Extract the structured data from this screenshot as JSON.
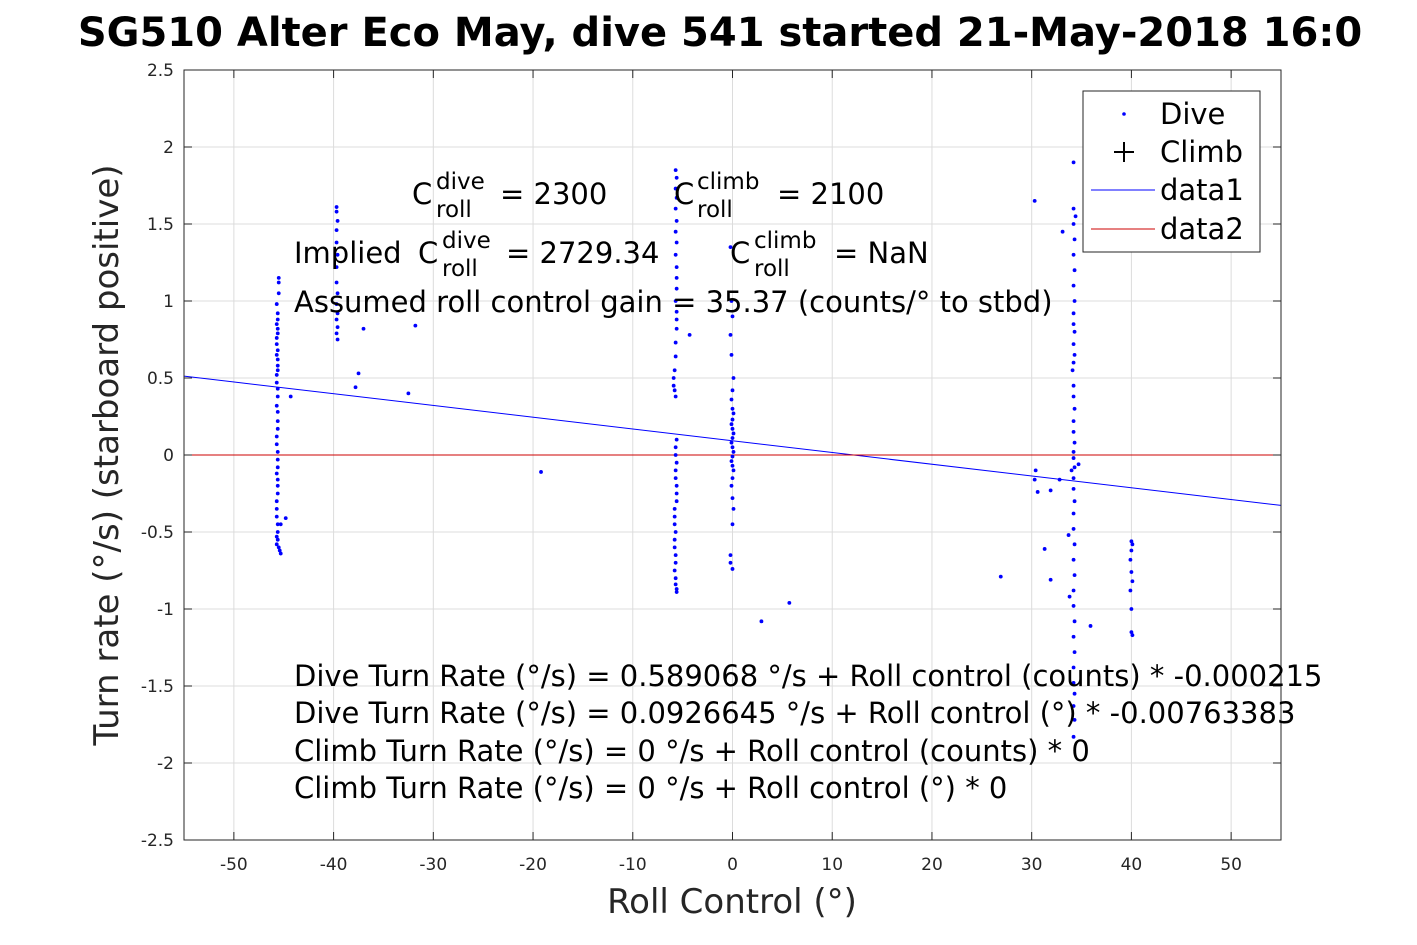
{
  "chart_data": {
    "type": "scatter",
    "title": "SG510 Alter Eco May, dive 541 started 21-May-2018 16:0",
    "xlabel": "Roll Control (°)",
    "ylabel": "Turn rate (°/s) (starboard positive)",
    "xlim": [
      -55,
      55
    ],
    "ylim": [
      -2.5,
      2.5
    ],
    "xticks": [
      -50,
      -40,
      -30,
      -20,
      -10,
      0,
      10,
      20,
      30,
      40,
      50
    ],
    "yticks": [
      2.5,
      2,
      1.5,
      1,
      0.5,
      0,
      -0.5,
      -1,
      -1.5,
      -2,
      -2.5
    ],
    "xtick_labels": [
      "-50",
      "-40",
      "-30",
      "-20",
      "-10",
      "0",
      "10",
      "20",
      "30",
      "40",
      "50"
    ],
    "ytick_labels": [
      "2.5",
      "2",
      "1.5",
      "1",
      "0.5",
      "0",
      "-0.5",
      "-1",
      "-1.5",
      "-2",
      "-2.5"
    ],
    "grid": true,
    "legend_position": "top-right",
    "legend": [
      {
        "label": "Dive",
        "marker": "dot",
        "color": "#0000ff"
      },
      {
        "label": "Climb",
        "marker": "plus",
        "color": "#000000"
      },
      {
        "label": "data1",
        "marker": "line",
        "color": "#0000ff"
      },
      {
        "label": "data2",
        "marker": "line",
        "color": "#cc0000"
      }
    ],
    "series": [
      {
        "name": "Dive",
        "color": "#0000ff",
        "points": [
          [
            -45.5,
            1.15
          ],
          [
            -45.5,
            1.12
          ],
          [
            -45.5,
            1.05
          ],
          [
            -45.7,
            0.98
          ],
          [
            -45.6,
            0.92
          ],
          [
            -45.6,
            0.88
          ],
          [
            -45.7,
            0.85
          ],
          [
            -45.6,
            0.82
          ],
          [
            -45.6,
            0.79
          ],
          [
            -45.7,
            0.76
          ],
          [
            -45.7,
            0.72
          ],
          [
            -45.6,
            0.68
          ],
          [
            -45.7,
            0.65
          ],
          [
            -45.6,
            0.62
          ],
          [
            -45.6,
            0.58
          ],
          [
            -45.6,
            0.55
          ],
          [
            -45.7,
            0.52
          ],
          [
            -45.7,
            0.47
          ],
          [
            -45.6,
            0.43
          ],
          [
            -45.6,
            0.38
          ],
          [
            -45.7,
            0.32
          ],
          [
            -45.6,
            0.28
          ],
          [
            -45.6,
            0.22
          ],
          [
            -45.6,
            0.17
          ],
          [
            -45.7,
            0.12
          ],
          [
            -45.7,
            0.07
          ],
          [
            -45.6,
            0.02
          ],
          [
            -45.6,
            -0.03
          ],
          [
            -45.6,
            -0.08
          ],
          [
            -45.7,
            -0.12
          ],
          [
            -45.6,
            -0.16
          ],
          [
            -45.6,
            -0.2
          ],
          [
            -45.6,
            -0.25
          ],
          [
            -45.7,
            -0.3
          ],
          [
            -45.7,
            -0.35
          ],
          [
            -45.7,
            -0.4
          ],
          [
            -45.6,
            -0.45
          ],
          [
            -45.6,
            -0.5
          ],
          [
            -45.7,
            -0.53
          ],
          [
            -45.6,
            -0.55
          ],
          [
            -45.7,
            -0.58
          ],
          [
            -45.5,
            -0.6
          ],
          [
            -45.4,
            -0.62
          ],
          [
            -45.3,
            -0.64
          ],
          [
            -45.3,
            -0.45
          ],
          [
            -44.8,
            -0.41
          ],
          [
            -44.3,
            0.38
          ],
          [
            -39.7,
            1.61
          ],
          [
            -39.7,
            1.58
          ],
          [
            -39.6,
            1.52
          ],
          [
            -39.7,
            1.46
          ],
          [
            -39.7,
            1.38
          ],
          [
            -39.6,
            1.3
          ],
          [
            -39.7,
            1.22
          ],
          [
            -39.7,
            1.12
          ],
          [
            -39.6,
            1.05
          ],
          [
            -39.7,
            0.98
          ],
          [
            -39.6,
            0.92
          ],
          [
            -39.7,
            0.88
          ],
          [
            -39.6,
            0.83
          ],
          [
            -39.7,
            0.79
          ],
          [
            -39.6,
            0.75
          ],
          [
            -37.0,
            0.82
          ],
          [
            -37.5,
            0.53
          ],
          [
            -37.8,
            0.44
          ],
          [
            -31.8,
            0.84
          ],
          [
            -32.5,
            0.4
          ],
          [
            -19.2,
            -0.11
          ],
          [
            -4.3,
            0.78
          ],
          [
            -5.7,
            1.85
          ],
          [
            -5.6,
            1.8
          ],
          [
            -5.7,
            1.73
          ],
          [
            -5.6,
            1.67
          ],
          [
            -5.7,
            1.6
          ],
          [
            -5.6,
            1.52
          ],
          [
            -5.7,
            1.45
          ],
          [
            -5.6,
            1.38
          ],
          [
            -5.7,
            1.3
          ],
          [
            -5.6,
            1.22
          ],
          [
            -5.6,
            1.15
          ],
          [
            -5.6,
            1.08
          ],
          [
            -5.7,
            1.0
          ],
          [
            -5.6,
            0.93
          ],
          [
            -5.6,
            0.88
          ],
          [
            -5.6,
            0.82
          ],
          [
            -5.7,
            0.73
          ],
          [
            -5.7,
            0.64
          ],
          [
            -5.8,
            0.55
          ],
          [
            -5.9,
            0.5
          ],
          [
            -5.9,
            0.45
          ],
          [
            -5.8,
            0.42
          ],
          [
            -5.7,
            0.38
          ],
          [
            -5.6,
            0.1
          ],
          [
            -5.7,
            0.05
          ],
          [
            -5.7,
            0.0
          ],
          [
            -5.6,
            -0.05
          ],
          [
            -5.7,
            -0.1
          ],
          [
            -5.7,
            -0.15
          ],
          [
            -5.6,
            -0.2
          ],
          [
            -5.6,
            -0.25
          ],
          [
            -5.6,
            -0.3
          ],
          [
            -5.8,
            -0.35
          ],
          [
            -5.8,
            -0.4
          ],
          [
            -5.8,
            -0.45
          ],
          [
            -5.7,
            -0.5
          ],
          [
            -5.8,
            -0.55
          ],
          [
            -5.8,
            -0.6
          ],
          [
            -5.7,
            -0.65
          ],
          [
            -5.7,
            -0.7
          ],
          [
            -5.8,
            -0.75
          ],
          [
            -5.7,
            -0.8
          ],
          [
            -5.7,
            -0.84
          ],
          [
            -5.6,
            -0.87
          ],
          [
            -5.6,
            -0.89
          ],
          [
            -0.2,
            1.35
          ],
          [
            -0.1,
            1.0
          ],
          [
            0.0,
            0.9
          ],
          [
            -0.2,
            0.78
          ],
          [
            -0.1,
            0.65
          ],
          [
            0.1,
            0.5
          ],
          [
            0.0,
            0.42
          ],
          [
            -0.1,
            0.36
          ],
          [
            0.0,
            0.3
          ],
          [
            0.1,
            0.27
          ],
          [
            0.0,
            0.23
          ],
          [
            -0.1,
            0.2
          ],
          [
            0.0,
            0.17
          ],
          [
            0.1,
            0.14
          ],
          [
            0.0,
            0.11
          ],
          [
            -0.1,
            0.08
          ],
          [
            0.0,
            0.05
          ],
          [
            0.1,
            0.02
          ],
          [
            0.0,
            -0.01
          ],
          [
            -0.1,
            -0.04
          ],
          [
            0.0,
            -0.07
          ],
          [
            0.1,
            -0.1
          ],
          [
            0.0,
            -0.15
          ],
          [
            -0.1,
            -0.2
          ],
          [
            0.0,
            -0.28
          ],
          [
            0.1,
            -0.35
          ],
          [
            0.0,
            -0.45
          ],
          [
            -0.2,
            -0.65
          ],
          [
            -0.2,
            -0.7
          ],
          [
            0.0,
            -0.74
          ],
          [
            2.9,
            -1.08
          ],
          [
            5.7,
            -0.96
          ],
          [
            26.9,
            -0.79
          ],
          [
            31.3,
            -0.61
          ],
          [
            31.9,
            -0.81
          ],
          [
            30.3,
            1.65
          ],
          [
            30.3,
            -0.16
          ],
          [
            30.4,
            -0.1
          ],
          [
            30.6,
            -0.24
          ],
          [
            31.9,
            -0.23
          ],
          [
            32.8,
            -0.16
          ],
          [
            33.1,
            1.45
          ],
          [
            35.9,
            -1.11
          ],
          [
            34.7,
            -0.06
          ],
          [
            34.2,
            1.9
          ],
          [
            34.2,
            1.6
          ],
          [
            34.4,
            1.55
          ],
          [
            34.2,
            1.5
          ],
          [
            34.3,
            1.4
          ],
          [
            34.2,
            1.3
          ],
          [
            34.3,
            1.2
          ],
          [
            34.2,
            1.1
          ],
          [
            34.3,
            1.0
          ],
          [
            34.2,
            0.92
          ],
          [
            34.2,
            0.85
          ],
          [
            34.3,
            0.8
          ],
          [
            34.2,
            0.72
          ],
          [
            34.3,
            0.65
          ],
          [
            34.2,
            0.6
          ],
          [
            34.1,
            0.55
          ],
          [
            34.2,
            0.45
          ],
          [
            34.2,
            0.38
          ],
          [
            34.3,
            0.3
          ],
          [
            34.2,
            0.22
          ],
          [
            34.2,
            0.15
          ],
          [
            34.3,
            0.08
          ],
          [
            34.2,
            0.02
          ],
          [
            34.2,
            -0.02
          ],
          [
            34.3,
            -0.08
          ],
          [
            34.2,
            -0.15
          ],
          [
            34.2,
            -0.22
          ],
          [
            34.3,
            -0.3
          ],
          [
            34.2,
            -0.38
          ],
          [
            34.2,
            -0.48
          ],
          [
            34.3,
            -0.58
          ],
          [
            34.2,
            -0.68
          ],
          [
            34.3,
            -0.78
          ],
          [
            34.2,
            -0.88
          ],
          [
            34.2,
            -0.98
          ],
          [
            34.3,
            -1.08
          ],
          [
            34.2,
            -1.18
          ],
          [
            34.3,
            -1.28
          ],
          [
            34.2,
            -1.38
          ],
          [
            34.2,
            -1.48
          ],
          [
            34.3,
            -1.55
          ],
          [
            34.2,
            -1.63
          ],
          [
            34.3,
            -1.72
          ],
          [
            34.2,
            -1.83
          ],
          [
            33.8,
            -0.92
          ],
          [
            33.7,
            -0.52
          ],
          [
            34.0,
            -0.1
          ],
          [
            40.0,
            -0.56
          ],
          [
            40.1,
            -0.58
          ],
          [
            40.0,
            -0.62
          ],
          [
            39.9,
            -0.68
          ],
          [
            40.0,
            -0.76
          ],
          [
            40.1,
            -0.82
          ],
          [
            39.9,
            -0.88
          ],
          [
            40.0,
            -1.0
          ],
          [
            40.0,
            -1.15
          ],
          [
            40.1,
            -1.17
          ]
        ]
      },
      {
        "name": "Climb",
        "color": "#000000",
        "points": []
      },
      {
        "name": "data1",
        "color": "#0000ff",
        "line": [
          [
            -55,
            0.5125
          ],
          [
            55,
            -0.3273
          ]
        ]
      },
      {
        "name": "data2",
        "color": "#cc0000",
        "line": [
          [
            -55,
            0
          ],
          [
            55,
            0
          ]
        ]
      }
    ],
    "annotations": {
      "c_dive": {
        "base": "C",
        "sup": "dive",
        "sub": "roll",
        "value": "= 2300"
      },
      "c_climb": {
        "base": "C",
        "sup": "climb",
        "sub": "roll",
        "value": "= 2100"
      },
      "implied_prefix": "Implied ",
      "implied_dive": {
        "base": "C",
        "sup": "dive",
        "sub": "roll",
        "value": "= 2729.34"
      },
      "implied_climb": {
        "base": "C",
        "sup": "climb",
        "sub": "roll",
        "value": "= NaN"
      },
      "gain": "Assumed roll control gain = 35.37 (counts/° to stbd)",
      "equations": [
        "Dive Turn Rate (°/s) = 0.589068 °/s + Roll control (counts) * -0.000215",
        "Dive Turn Rate (°/s) = 0.0926645 °/s + Roll control (°) * -0.00763383",
        "Climb Turn Rate (°/s) = 0 °/s + Roll control (counts) * 0",
        "Climb Turn Rate (°/s) = 0 °/s + Roll control (°) * 0"
      ]
    }
  }
}
